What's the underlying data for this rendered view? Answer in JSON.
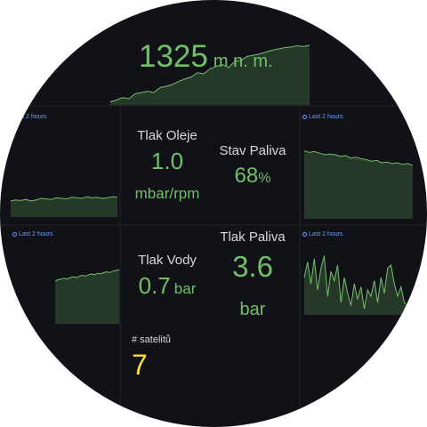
{
  "altitude": {
    "value": "1325",
    "unit": "m n. m."
  },
  "time_range_label": "Last 2 hours",
  "oil_pressure": {
    "title": "Tlak Oleje",
    "value": "1.0",
    "unit": "mbar/rpm"
  },
  "fuel_level": {
    "title": "Stav Paliva",
    "value": "68",
    "unit": "%"
  },
  "water_pressure": {
    "title": "Tlak Vody",
    "value": "0.7",
    "unit": "bar"
  },
  "fuel_pressure": {
    "title": "Tlak Paliva",
    "value": "3.6",
    "unit": "bar"
  },
  "satellites": {
    "title": "# satelitů",
    "value": "7"
  },
  "colors": {
    "background": "#111217",
    "value_green": "#73bf69",
    "value_yellow": "#fade2a",
    "link_blue": "#6e9fff",
    "title_text": "#d8d9da"
  },
  "sparklines": {
    "altitude": [
      0.05,
      0.08,
      0.12,
      0.1,
      0.18,
      0.2,
      0.22,
      0.2,
      0.28,
      0.3,
      0.33,
      0.38,
      0.42,
      0.45,
      0.52,
      0.5,
      0.58,
      0.62,
      0.65,
      0.6,
      0.7,
      0.72,
      0.78,
      0.8,
      0.82,
      0.85,
      0.88,
      0.9,
      0.92,
      0.93,
      0.95,
      0.94,
      0.96
    ],
    "oil_pressure": [
      0.3,
      0.32,
      0.31,
      0.33,
      0.3,
      0.32,
      0.35,
      0.34,
      0.33,
      0.36,
      0.35,
      0.34,
      0.37,
      0.36,
      0.35,
      0.38,
      0.36,
      0.37,
      0.35,
      0.36,
      0.38,
      0.37
    ],
    "fuel_level": [
      0.85,
      0.83,
      0.84,
      0.82,
      0.8,
      0.81,
      0.8,
      0.78,
      0.79,
      0.76,
      0.77,
      0.75,
      0.74,
      0.72,
      0.73,
      0.7,
      0.71,
      0.69,
      0.7,
      0.68,
      0.69,
      0.67
    ],
    "water_pressure": [
      0.6,
      0.62,
      0.63,
      0.64,
      0.63,
      0.65,
      0.66,
      0.65,
      0.67,
      0.68,
      0.67,
      0.69,
      0.7,
      0.69,
      0.71,
      0.7,
      0.72,
      0.73,
      0.72,
      0.74,
      0.75,
      0.76
    ],
    "fuel_pressure": [
      0.6,
      0.85,
      0.5,
      0.9,
      0.4,
      0.75,
      0.95,
      0.3,
      0.7,
      0.55,
      0.8,
      0.2,
      0.6,
      0.35,
      0.15,
      0.5,
      0.25,
      0.45,
      0.1,
      0.4,
      0.3,
      0.55,
      0.2,
      0.6,
      0.35,
      0.75,
      0.8,
      0.5,
      0.3,
      0.45,
      0.2,
      0.15,
      0.1
    ]
  }
}
